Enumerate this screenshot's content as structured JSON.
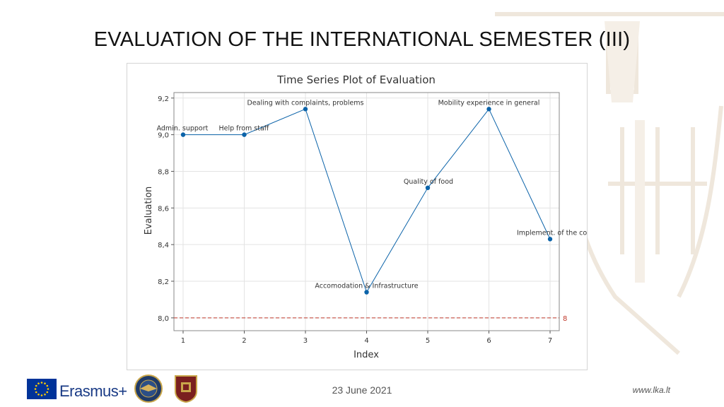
{
  "slide": {
    "title": "EVALUATION OF THE INTERNATIONAL SEMESTER (III)",
    "footer_date": "23 June 2021",
    "footer_url": "www.lka.lt",
    "erasmus_label": "Erasmus+"
  },
  "colors": {
    "series": "#0b63a9",
    "reference_line": "#c0392b",
    "grid": "#e3e3e3",
    "eu_blue": "#003399",
    "eu_star": "#ffcc00"
  },
  "icons": [
    "eu-flag-icon",
    "air-force-seal-icon",
    "academy-crest-icon",
    "background-emblem-icon"
  ],
  "chart_data": {
    "type": "line",
    "title": "Time Series Plot of Evaluation",
    "xlabel": "Index",
    "ylabel": "Evaluation",
    "x": [
      1,
      2,
      3,
      4,
      5,
      6,
      7
    ],
    "values": [
      9.0,
      9.0,
      9.14,
      8.14,
      8.71,
      9.14,
      8.43
    ],
    "point_labels": [
      "Admin. support",
      "Help from staff",
      "Dealing with complaints, problems",
      "Accomodation & Infrastructure",
      "Quality of food",
      "Mobility experience in general",
      "Implement. of the cours"
    ],
    "xlim": [
      0.85,
      7.15
    ],
    "ylim": [
      7.93,
      9.23
    ],
    "yticks": [
      8.0,
      8.2,
      8.4,
      8.6,
      8.8,
      9.0,
      9.2
    ],
    "ytick_labels": [
      "8,0",
      "8,2",
      "8,4",
      "8,6",
      "8,8",
      "9,0",
      "9,2"
    ],
    "xtick_labels": [
      "1",
      "2",
      "3",
      "4",
      "5",
      "6",
      "7"
    ],
    "reference_line": {
      "y": 8,
      "label": "8",
      "style": "dashed"
    },
    "grid": true,
    "legend": "none"
  }
}
